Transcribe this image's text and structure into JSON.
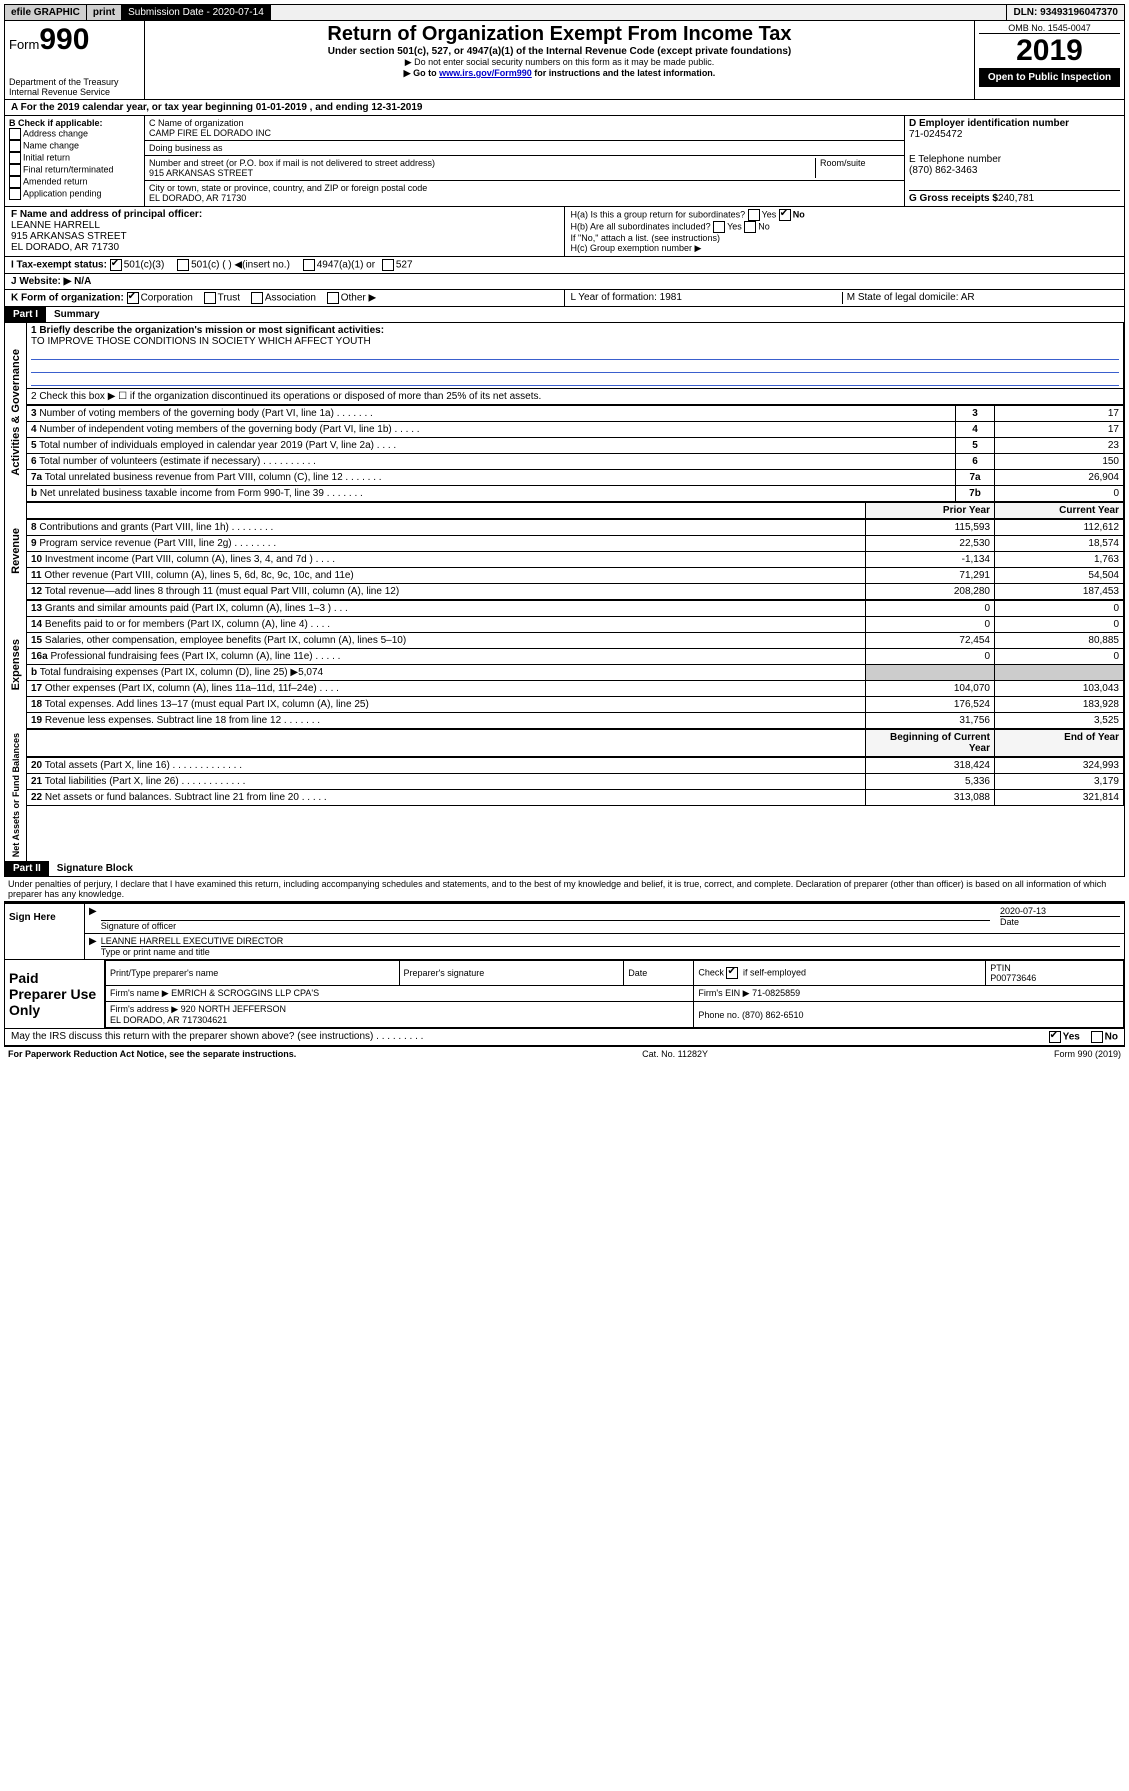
{
  "topbar": {
    "efile": "efile GRAPHIC",
    "print": "print",
    "subdate_label": "Submission Date - 2020-07-14",
    "dln": "DLN: 93493196047370"
  },
  "head": {
    "form_label": "Form",
    "form_no": "990",
    "dept": "Department of the Treasury\nInternal Revenue Service",
    "title": "Return of Organization Exempt From Income Tax",
    "subtitle": "Under section 501(c), 527, or 4947(a)(1) of the Internal Revenue Code (except private foundations)",
    "note1": "▶ Do not enter social security numbers on this form as it may be made public.",
    "note2_pre": "▶ Go to ",
    "note2_link": "www.irs.gov/Form990",
    "note2_post": " for instructions and the latest information.",
    "omb": "OMB No. 1545-0047",
    "year": "2019",
    "open": "Open to Public Inspection"
  },
  "rowA": "A For the 2019 calendar year, or tax year beginning 01-01-2019   , and ending 12-31-2019",
  "colB": {
    "label": "B Check if applicable:",
    "opts": [
      "Address change",
      "Name change",
      "Initial return",
      "Final return/terminated",
      "Amended return",
      "Application pending"
    ]
  },
  "colC": {
    "name_label": "C Name of organization",
    "name": "CAMP FIRE EL DORADO INC",
    "dba": "Doing business as",
    "addr_label": "Number and street (or P.O. box if mail is not delivered to street address)",
    "room": "Room/suite",
    "addr": "915 ARKANSAS STREET",
    "city_label": "City or town, state or province, country, and ZIP or foreign postal code",
    "city": "EL DORADO, AR  71730"
  },
  "colD": {
    "ein_label": "D Employer identification number",
    "ein": "71-0245472",
    "phone_label": "E Telephone number",
    "phone": "(870) 862-3463",
    "gross_label": "G Gross receipts $",
    "gross": "240,781"
  },
  "rowF": {
    "f_label": "F  Name and address of principal officer:",
    "f_name": "LEANNE HARRELL\n915 ARKANSAS STREET\nEL DORADO, AR  71730",
    "ha": "H(a)  Is this a group return for subordinates?",
    "ha_ans": "No",
    "hb": "H(b)  Are all subordinates included?",
    "hc_note": "If \"No,\" attach a list. (see instructions)",
    "hc": "H(c)  Group exemption number ▶"
  },
  "rowI": {
    "label": "I   Tax-exempt status:",
    "a": "501(c)(3)",
    "b": "501(c) (   ) ◀(insert no.)",
    "c": "4947(a)(1) or",
    "d": "527"
  },
  "rowJ": "J   Website: ▶  N/A",
  "rowK": {
    "label": "K Form of organization:",
    "opts": [
      "Corporation",
      "Trust",
      "Association",
      "Other ▶"
    ],
    "L": "L Year of formation: 1981",
    "M": "M State of legal domicile: AR"
  },
  "part1": {
    "label": "Part I",
    "title": "Summary"
  },
  "summary": {
    "q1_label": "1   Briefly describe the organization's mission or most significant activities:",
    "q1_text": "TO IMPROVE THOSE CONDITIONS IN SOCIETY WHICH AFFECT YOUTH",
    "q2": "2   Check this box ▶ ☐  if the organization discontinued its operations or disposed of more than 25% of its net assets.",
    "rows_a": [
      {
        "n": "3",
        "t": "Number of voting members of the governing body (Part VI, line 1a)   .   .   .   .   .   .   .",
        "c": "3",
        "v": "17"
      },
      {
        "n": "4",
        "t": "Number of independent voting members of the governing body (Part VI, line 1b)   .   .   .   .   .",
        "c": "4",
        "v": "17"
      },
      {
        "n": "5",
        "t": "Total number of individuals employed in calendar year 2019 (Part V, line 2a)   .   .   .   .",
        "c": "5",
        "v": "23"
      },
      {
        "n": "6",
        "t": "Total number of volunteers (estimate if necessary)   .   .   .   .   .   .   .   .   .   .",
        "c": "6",
        "v": "150"
      },
      {
        "n": "7a",
        "t": "Total unrelated business revenue from Part VIII, column (C), line 12   .   .   .   .   .   .   .",
        "c": "7a",
        "v": "26,904"
      },
      {
        "n": "b",
        "t": "Net unrelated business taxable income from Form 990-T, line 39   .   .   .   .   .   .   .",
        "c": "7b",
        "v": "0"
      }
    ],
    "hdr_prior": "Prior Year",
    "hdr_cur": "Current Year",
    "rows_rev": [
      {
        "n": "8",
        "t": "Contributions and grants (Part VIII, line 1h)   .   .   .   .   .   .   .   .",
        "p": "115,593",
        "c": "112,612"
      },
      {
        "n": "9",
        "t": "Program service revenue (Part VIII, line 2g)   .   .   .   .   .   .   .   .",
        "p": "22,530",
        "c": "18,574"
      },
      {
        "n": "10",
        "t": "Investment income (Part VIII, column (A), lines 3, 4, and 7d )   .   .   .   .",
        "p": "-1,134",
        "c": "1,763"
      },
      {
        "n": "11",
        "t": "Other revenue (Part VIII, column (A), lines 5, 6d, 8c, 9c, 10c, and 11e)",
        "p": "71,291",
        "c": "54,504"
      },
      {
        "n": "12",
        "t": "Total revenue—add lines 8 through 11 (must equal Part VIII, column (A), line 12)",
        "p": "208,280",
        "c": "187,453"
      }
    ],
    "rows_exp": [
      {
        "n": "13",
        "t": "Grants and similar amounts paid (Part IX, column (A), lines 1–3 )   .   .   .",
        "p": "0",
        "c": "0"
      },
      {
        "n": "14",
        "t": "Benefits paid to or for members (Part IX, column (A), line 4)   .   .   .   .",
        "p": "0",
        "c": "0"
      },
      {
        "n": "15",
        "t": "Salaries, other compensation, employee benefits (Part IX, column (A), lines 5–10)",
        "p": "72,454",
        "c": "80,885"
      },
      {
        "n": "16a",
        "t": "Professional fundraising fees (Part IX, column (A), line 11e)   .   .   .   .   .",
        "p": "0",
        "c": "0"
      },
      {
        "n": "b",
        "t": "Total fundraising expenses (Part IX, column (D), line 25) ▶5,074",
        "p": "",
        "c": ""
      },
      {
        "n": "17",
        "t": "Other expenses (Part IX, column (A), lines 11a–11d, 11f–24e)   .   .   .   .",
        "p": "104,070",
        "c": "103,043"
      },
      {
        "n": "18",
        "t": "Total expenses. Add lines 13–17 (must equal Part IX, column (A), line 25)",
        "p": "176,524",
        "c": "183,928"
      },
      {
        "n": "19",
        "t": "Revenue less expenses. Subtract line 18 from line 12   .   .   .   .   .   .   .",
        "p": "31,756",
        "c": "3,525"
      }
    ],
    "hdr_beg": "Beginning of Current Year",
    "hdr_end": "End of Year",
    "rows_na": [
      {
        "n": "20",
        "t": "Total assets (Part X, line 16)   .   .   .   .   .   .   .   .   .   .   .   .   .",
        "p": "318,424",
        "c": "324,993"
      },
      {
        "n": "21",
        "t": "Total liabilities (Part X, line 26)   .   .   .   .   .   .   .   .   .   .   .   .",
        "p": "5,336",
        "c": "3,179"
      },
      {
        "n": "22",
        "t": "Net assets or fund balances. Subtract line 21 from line 20   .   .   .   .   .",
        "p": "313,088",
        "c": "321,814"
      }
    ]
  },
  "side_labels": {
    "ag": "Activities & Governance",
    "rev": "Revenue",
    "exp": "Expenses",
    "na": "Net Assets or Fund Balances"
  },
  "part2": {
    "label": "Part II",
    "title": "Signature Block"
  },
  "sig": {
    "perjury": "Under penalties of perjury, I declare that I have examined this return, including accompanying schedules and statements, and to the best of my knowledge and belief, it is true, correct, and complete. Declaration of preparer (other than officer) is based on all information of which preparer has any knowledge.",
    "sign_here": "Sign Here",
    "sig_officer": "Signature of officer",
    "date": "2020-07-13",
    "date_label": "Date",
    "name": "LEANNE HARRELL  EXECUTIVE DIRECTOR",
    "name_label": "Type or print name and title"
  },
  "paid": {
    "label": "Paid Preparer Use Only",
    "h1": "Print/Type preparer's name",
    "h2": "Preparer's signature",
    "h3": "Date",
    "h4a": "Check",
    "h4b": "if self-employed",
    "h5": "PTIN",
    "ptin": "P00773646",
    "firm_label": "Firm's name   ▶",
    "firm": "EMRICH & SCROGGINS LLP CPA'S",
    "ein_label": "Firm's EIN ▶",
    "ein": "71-0825859",
    "addr_label": "Firm's address ▶",
    "addr": "920 NORTH JEFFERSON\nEL DORADO, AR  717304621",
    "phone_label": "Phone no.",
    "phone": "(870) 862-6510"
  },
  "discuss": {
    "q": "May the IRS discuss this return with the preparer shown above? (see instructions)   .   .   .   .   .   .   .   .   .",
    "yes": "Yes",
    "no": "No"
  },
  "foot": {
    "l": "For Paperwork Reduction Act Notice, see the separate instructions.",
    "c": "Cat. No. 11282Y",
    "r": "Form 990 (2019)"
  }
}
